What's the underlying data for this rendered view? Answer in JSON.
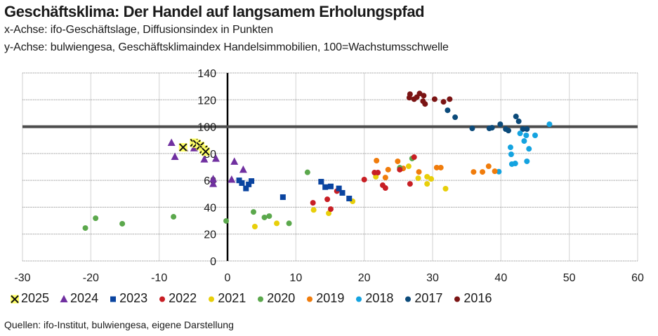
{
  "header": {
    "title": "Geschäftsklima: Der Handel auf langsamem Erholungspfad",
    "subtitle_x": "x-Achse: ifo-Geschäftslage, Diffusionsindex in Punkten",
    "subtitle_y": "y-Achse: bulwiengesa, Geschäftsklimaindex Handelsimmobilien, 100=Wachstumsschwelle"
  },
  "source": "Quellen: ifo-Institut, bulwiengesa, eigene Darstellung",
  "chart_data": {
    "type": "scatter",
    "title": "Geschäftsklima: Der Handel auf langsamem Erholungspfad",
    "xlabel": "ifo-Geschäftslage, Diffusionsindex in Punkten",
    "ylabel": "bulwiengesa, Geschäftsklimaindex Handelsimmobilien, 100=Wachstumsschwelle",
    "xlim": [
      -30,
      60
    ],
    "ylim": [
      0,
      140
    ],
    "x_ticks": [
      -30,
      -20,
      -10,
      0,
      10,
      20,
      30,
      40,
      50,
      60
    ],
    "y_ticks": [
      0,
      20,
      40,
      60,
      80,
      100,
      120,
      140
    ],
    "reference_line_y": 100,
    "grid": true,
    "legend_position": "bottom",
    "series": [
      {
        "name": "2016",
        "marker": "circle",
        "color": "#7b1414",
        "points": [
          [
            26.7,
            124.2
          ],
          [
            26.6,
            121.6
          ],
          [
            27.3,
            120.5
          ],
          [
            27.7,
            122
          ],
          [
            28.1,
            124.7
          ],
          [
            28.7,
            123.1
          ],
          [
            28.6,
            119
          ],
          [
            28.9,
            116.9
          ],
          [
            30.3,
            120.5
          ],
          [
            31.6,
            118.5
          ],
          [
            32.5,
            120.5
          ]
        ]
      },
      {
        "name": "2017",
        "marker": "circle",
        "color": "#0b4a7a",
        "points": [
          [
            32.2,
            112.2
          ],
          [
            33.3,
            107
          ],
          [
            35.8,
            98.7
          ],
          [
            38.3,
            98.7
          ],
          [
            38.7,
            99.2
          ],
          [
            39.9,
            101.8
          ],
          [
            40.7,
            98.2
          ],
          [
            41.1,
            97.1
          ],
          [
            42.2,
            107.6
          ],
          [
            42.6,
            104
          ],
          [
            43.2,
            98.2
          ],
          [
            43.8,
            98.2
          ]
        ]
      },
      {
        "name": "2018",
        "marker": "circle",
        "color": "#14a3e0",
        "points": [
          [
            47.1,
            101.8
          ],
          [
            42.8,
            95
          ],
          [
            43.7,
            93.5
          ],
          [
            45.0,
            93.5
          ],
          [
            43.4,
            89.3
          ],
          [
            41.4,
            84.6
          ],
          [
            44.1,
            83.5
          ],
          [
            41.5,
            79.4
          ],
          [
            43.8,
            74.2
          ],
          [
            41.6,
            72.1
          ],
          [
            42.1,
            72.6
          ],
          [
            39.7,
            66.5
          ]
        ]
      },
      {
        "name": "2019",
        "marker": "circle",
        "color": "#f07c0c",
        "points": [
          [
            21.8,
            74.7
          ],
          [
            23.5,
            68
          ],
          [
            23.1,
            62.1
          ],
          [
            24.9,
            74.2
          ],
          [
            25.7,
            68.9
          ],
          [
            28.0,
            66.3
          ],
          [
            30.6,
            69.5
          ],
          [
            31.2,
            69.5
          ],
          [
            36.0,
            66.3
          ],
          [
            37.3,
            66.3
          ],
          [
            38.2,
            70.5
          ],
          [
            39.1,
            66.8
          ]
        ]
      },
      {
        "name": "2020",
        "marker": "circle",
        "color": "#5ba84c",
        "points": [
          [
            -20.8,
            24.5
          ],
          [
            -19.3,
            31.8
          ],
          [
            -15.4,
            27.7
          ],
          [
            -7.9,
            32.9
          ],
          [
            -0.2,
            29.8
          ],
          [
            3.8,
            36.5
          ],
          [
            5.4,
            32.4
          ],
          [
            6.1,
            33.4
          ],
          [
            9.0,
            28
          ],
          [
            11.7,
            66
          ],
          [
            25.2,
            69.4
          ],
          [
            27.0,
            76.3
          ]
        ]
      },
      {
        "name": "2021",
        "marker": "circle",
        "color": "#e8cf0a",
        "points": [
          [
            4.0,
            25.6
          ],
          [
            7.2,
            28
          ],
          [
            12.6,
            38
          ],
          [
            14.8,
            35.5
          ],
          [
            18.3,
            44.4
          ],
          [
            21.7,
            62.7
          ],
          [
            26.5,
            70.5
          ],
          [
            27.9,
            61.6
          ],
          [
            29.2,
            62.7
          ],
          [
            29.8,
            61.1
          ],
          [
            29.2,
            57.4
          ],
          [
            31.9,
            53.8
          ]
        ]
      },
      {
        "name": "2022",
        "marker": "circle",
        "color": "#c81e24",
        "points": [
          [
            12.5,
            43.3
          ],
          [
            14.6,
            45.9
          ],
          [
            15.1,
            38.6
          ],
          [
            16.0,
            52
          ],
          [
            20.0,
            60.6
          ],
          [
            21.5,
            65.8
          ],
          [
            22.0,
            65.8
          ],
          [
            22.7,
            56.4
          ],
          [
            23.1,
            54.3
          ],
          [
            25.2,
            68
          ],
          [
            26.7,
            57.4
          ],
          [
            27.3,
            77.3
          ]
        ]
      },
      {
        "name": "2023",
        "marker": "square",
        "color": "#0a44a0",
        "points": [
          [
            1.7,
            60
          ],
          [
            2.1,
            58
          ],
          [
            2.7,
            54
          ],
          [
            3.1,
            57
          ],
          [
            3.5,
            59.5
          ],
          [
            8.1,
            47.5
          ],
          [
            13.7,
            59
          ],
          [
            14.3,
            55
          ],
          [
            15.1,
            55.5
          ],
          [
            16.3,
            54
          ],
          [
            16.8,
            50.7
          ],
          [
            17.8,
            46.5
          ]
        ]
      },
      {
        "name": "2024",
        "marker": "triangle",
        "color": "#7030a0",
        "points": [
          [
            -8.2,
            88
          ],
          [
            -7.7,
            77.6
          ],
          [
            -6.3,
            84
          ],
          [
            -4.9,
            84
          ],
          [
            -3.4,
            75.7
          ],
          [
            -1.7,
            76.2
          ],
          [
            -2.1,
            61
          ],
          [
            -2.1,
            57.4
          ],
          [
            1.0,
            74
          ],
          [
            2.3,
            68
          ],
          [
            0.6,
            60.6
          ]
        ]
      },
      {
        "name": "2025",
        "marker": "cross",
        "color": "#111111",
        "fill": "#ffff66",
        "points": [
          [
            -6.5,
            84.6
          ],
          [
            -4.9,
            88
          ],
          [
            -4.5,
            87.2
          ],
          [
            -4.0,
            85.6
          ],
          [
            -3.5,
            83
          ],
          [
            -3.2,
            81.4
          ]
        ]
      }
    ],
    "legend_order": [
      "2025",
      "2024",
      "2023",
      "2022",
      "2021",
      "2020",
      "2019",
      "2018",
      "2017",
      "2016"
    ]
  }
}
